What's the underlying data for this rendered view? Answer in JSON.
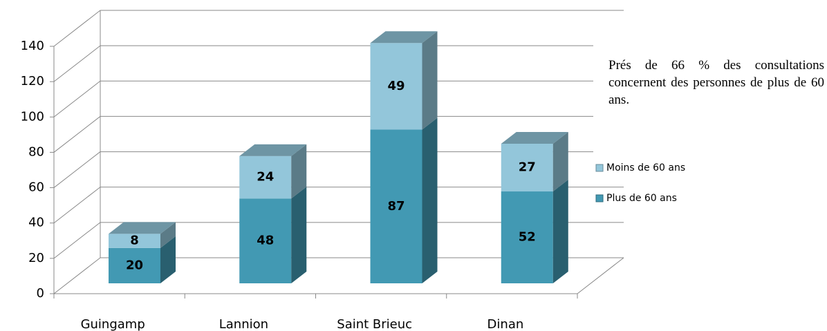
{
  "chart_data": {
    "type": "bar3d_stacked",
    "categories": [
      "Guingamp",
      "Lannion",
      "Saint Brieuc",
      "Dinan"
    ],
    "series": [
      {
        "name": "Plus de 60 ans",
        "color": "#4299b3",
        "values": [
          20,
          48,
          87,
          52
        ]
      },
      {
        "name": "Moins de 60 ans",
        "color": "#93c6da",
        "values": [
          8,
          24,
          49,
          27
        ]
      }
    ],
    "ylim": [
      0,
      140
    ],
    "yticks": [
      0,
      20,
      40,
      60,
      80,
      100,
      120,
      140
    ],
    "grid": true,
    "annotation": "Prés de 66 % des consultations concernent des personnes de plus de 60 ans.",
    "legend": "right"
  }
}
